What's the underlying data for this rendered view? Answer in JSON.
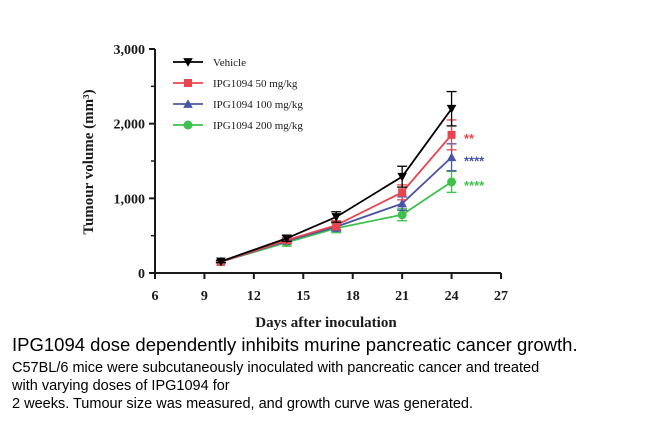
{
  "chart_data": {
    "type": "line",
    "x": [
      10,
      14,
      17,
      21,
      24
    ],
    "xlabel": "Days after inoculation",
    "ylabel": "Tumour volume (mm³)",
    "xlim": [
      6,
      27
    ],
    "ylim": [
      0,
      3000
    ],
    "xticks": [
      6,
      9,
      12,
      15,
      18,
      21,
      24,
      27
    ],
    "yticks": [
      0,
      1000,
      2000,
      3000
    ],
    "ytick_labels": [
      "0",
      "1,000",
      "2,000",
      "3,000"
    ],
    "grid": false,
    "legend_position": "top-left",
    "series": [
      {
        "name": "Vehicle",
        "color": "#000000",
        "marker": "triangle-down",
        "values": [
          155,
          465,
          750,
          1290,
          2200
        ],
        "errors": [
          15,
          40,
          70,
          140,
          230
        ]
      },
      {
        "name": "IPG1094 50 mg/kg",
        "color": "#e8454f",
        "marker": "square",
        "values": [
          150,
          440,
          640,
          1080,
          1850
        ],
        "errors": [
          15,
          40,
          60,
          100,
          200
        ]
      },
      {
        "name": "IPG1094 100 mg/kg",
        "color": "#4a54a6",
        "marker": "triangle-up",
        "values": [
          150,
          430,
          620,
          930,
          1550
        ],
        "errors": [
          15,
          35,
          60,
          90,
          180
        ]
      },
      {
        "name": "IPG1094 200 mg/kg",
        "color": "#3ec24c",
        "marker": "circle",
        "values": [
          150,
          410,
          600,
          780,
          1220
        ],
        "errors": [
          15,
          50,
          60,
          80,
          140
        ]
      }
    ],
    "annotations": [
      {
        "text": "**",
        "color": "#e8454f",
        "y": 1850
      },
      {
        "text": "****",
        "color": "#4a54a6",
        "y": 1550
      },
      {
        "text": "****",
        "color": "#3ec24c",
        "y": 1220
      }
    ]
  },
  "caption": {
    "title": "IPG1094 dose dependently inhibits murine pancreatic cancer growth.",
    "lines": [
      "C57BL/6 mice were subcutaneously inoculated with pancreatic cancer and treated",
      "with varying doses of IPG1094 for",
      "2 weeks. Tumour size was measured, and growth curve was generated."
    ]
  }
}
